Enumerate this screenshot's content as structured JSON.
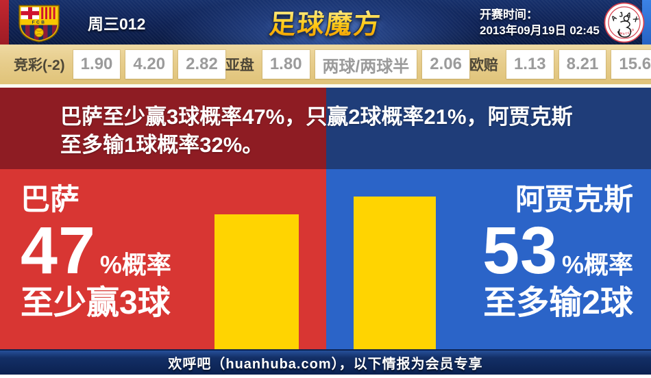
{
  "colors": {
    "home_red_dark": "#8e1c23",
    "home_red": "#d83633",
    "away_blue_dark": "#1f3d79",
    "away_blue": "#2b64c8",
    "bar_yellow": "#ffd401",
    "odds_bar_bg": "#e7cd8c",
    "header_navy": "#0e2154"
  },
  "header": {
    "match_code": "周三012",
    "site_name": "足球魔方",
    "kickoff_label": "开赛时间：",
    "kickoff_time": "2013年09月19日 02:45",
    "home_crest_text": "FCB",
    "away_crest_text": "AJAX",
    "away_crest_subtext": "AMSTERDAM"
  },
  "odds_bar": {
    "groups": [
      {
        "label": "竞彩(-2)",
        "values": [
          "1.90",
          "4.20",
          "2.82"
        ]
      },
      {
        "label": "亚盘",
        "values": [
          "1.80",
          "两球/两球半",
          "2.06"
        ]
      },
      {
        "label": "欧赔",
        "values": [
          "1.13",
          "8.21",
          "15.61"
        ]
      }
    ]
  },
  "summary": {
    "line1": "巴萨至少赢3球概率47%，只赢2球概率21%，阿贾克斯",
    "line2": "至多输1球概率32%。"
  },
  "home_panel": {
    "team": "巴萨",
    "percent": "47",
    "suffix": "%概率",
    "caption": "至少赢3球"
  },
  "away_panel": {
    "team": "阿贾克斯",
    "percent": "53",
    "suffix": "%概率",
    "caption": "至多输2球"
  },
  "footer": {
    "text": "欢呼吧（huanhuba.com），以下情报为会员专享"
  },
  "chart_data": {
    "type": "bar",
    "categories": [
      "巴萨至少赢3球",
      "阿贾克斯至多输2球"
    ],
    "values": [
      47,
      53
    ],
    "unit": "%",
    "bar_color": "#ffd401",
    "orientation": "vertical",
    "legend": "none",
    "ylim": [
      0,
      62.6
    ]
  }
}
